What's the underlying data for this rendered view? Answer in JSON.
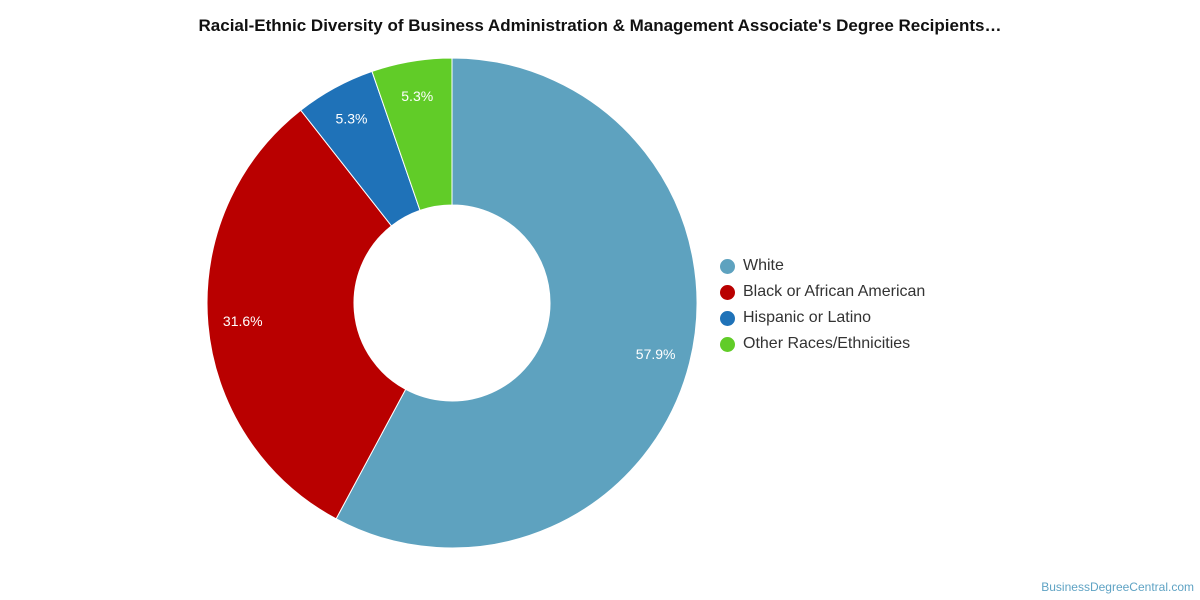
{
  "chart_data": {
    "type": "pie",
    "title": "Racial-Ethnic Diversity of Business Administration & Management Associate's Degree Recipients…",
    "donut": true,
    "categories": [
      "White",
      "Black or African American",
      "Hispanic or Latino",
      "Other Races/Ethnicities"
    ],
    "values": [
      57.9,
      31.6,
      5.3,
      5.3
    ],
    "value_labels": [
      "57.9%",
      "31.6%",
      "5.3%",
      "5.3%"
    ],
    "colors": [
      "#5ea2bf",
      "#b90000",
      "#1f72b8",
      "#61cc28"
    ],
    "legend_position": "right"
  },
  "credit": "BusinessDegreeCentral.com"
}
